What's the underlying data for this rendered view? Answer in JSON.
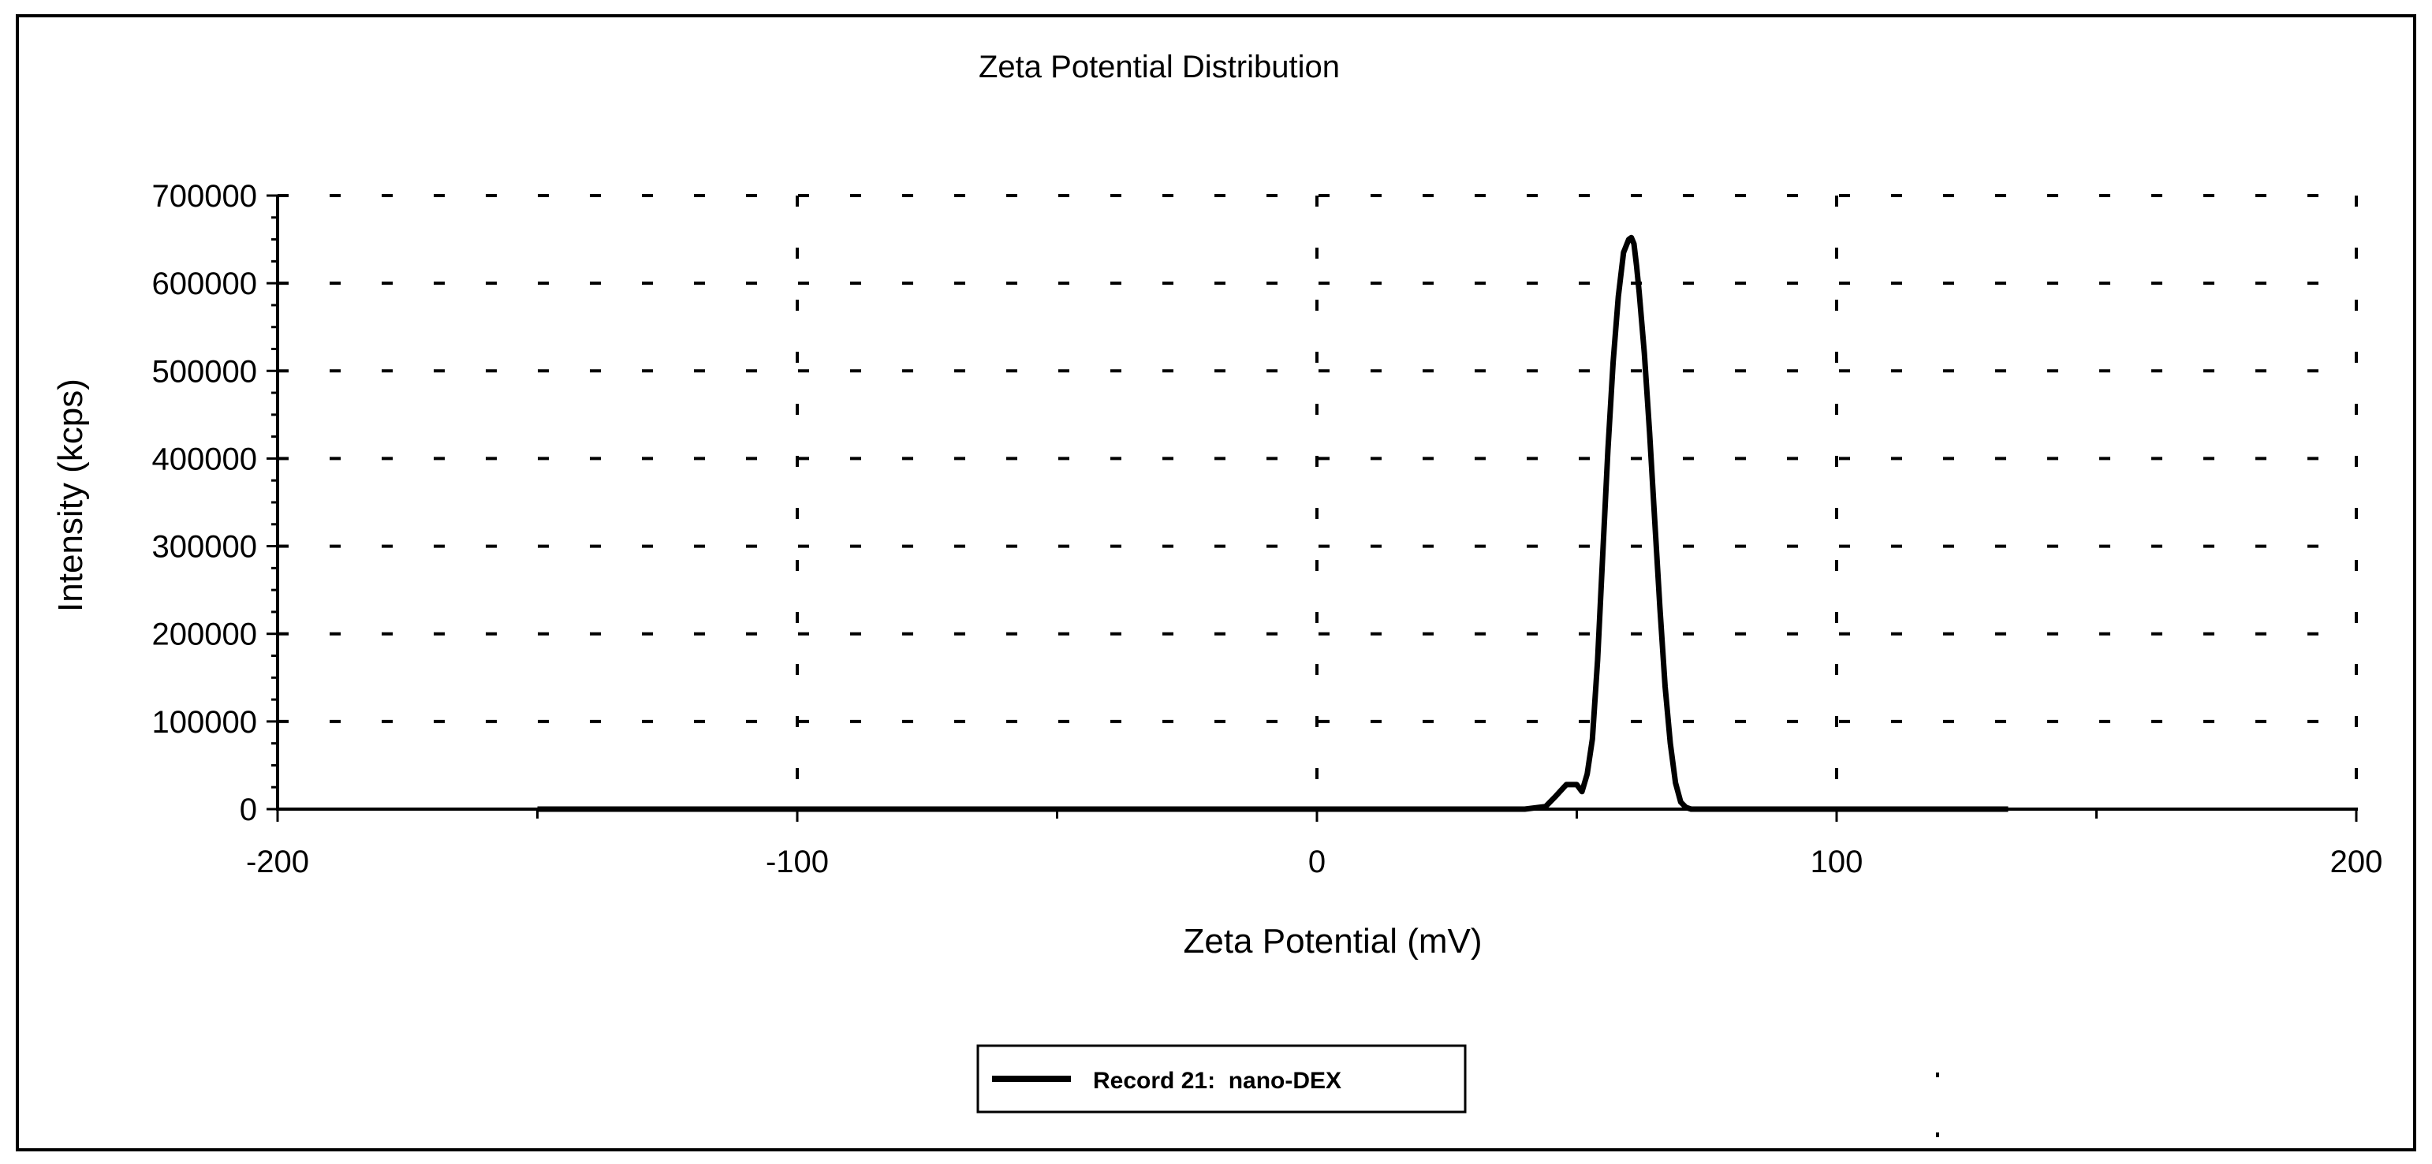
{
  "chart_data": {
    "type": "line",
    "title": "Zeta Potential Distribution",
    "xlabel": "Zeta Potential (mV)",
    "ylabel": "Intensity (kcps)",
    "xlim": [
      -200,
      200
    ],
    "ylim": [
      0,
      700000
    ],
    "x_ticks": [
      -200,
      -100,
      0,
      100,
      200
    ],
    "x_tick_labels": [
      "-200",
      "-100",
      "0",
      "100",
      "200"
    ],
    "y_ticks": [
      0,
      100000,
      200000,
      300000,
      400000,
      500000,
      600000,
      700000
    ],
    "y_tick_labels": [
      "0",
      "100000",
      "200000",
      "300000",
      "400000",
      "500000",
      "600000",
      "700000"
    ],
    "grid": true,
    "legend_position": "bottom-center",
    "series": [
      {
        "name": "Record 21:  nano-DEX",
        "color": "#000000",
        "x": [
          -150,
          -100,
          -50,
          0,
          20,
          40,
          44,
          46,
          48,
          50,
          51,
          52,
          53,
          54,
          55,
          56,
          57,
          58,
          59,
          60,
          60.5,
          61,
          61.5,
          62,
          63,
          64,
          65,
          66,
          67,
          68,
          69,
          70,
          71,
          72,
          73,
          80,
          100,
          120,
          133
        ],
        "y": [
          0,
          0,
          0,
          0,
          0,
          0,
          3000,
          15000,
          28000,
          28000,
          20000,
          40000,
          80000,
          170000,
          290000,
          410000,
          510000,
          585000,
          635000,
          650000,
          652000,
          645000,
          620000,
          590000,
          520000,
          430000,
          330000,
          230000,
          140000,
          75000,
          30000,
          8000,
          2000,
          0,
          0,
          0,
          0,
          0,
          0
        ]
      }
    ]
  }
}
